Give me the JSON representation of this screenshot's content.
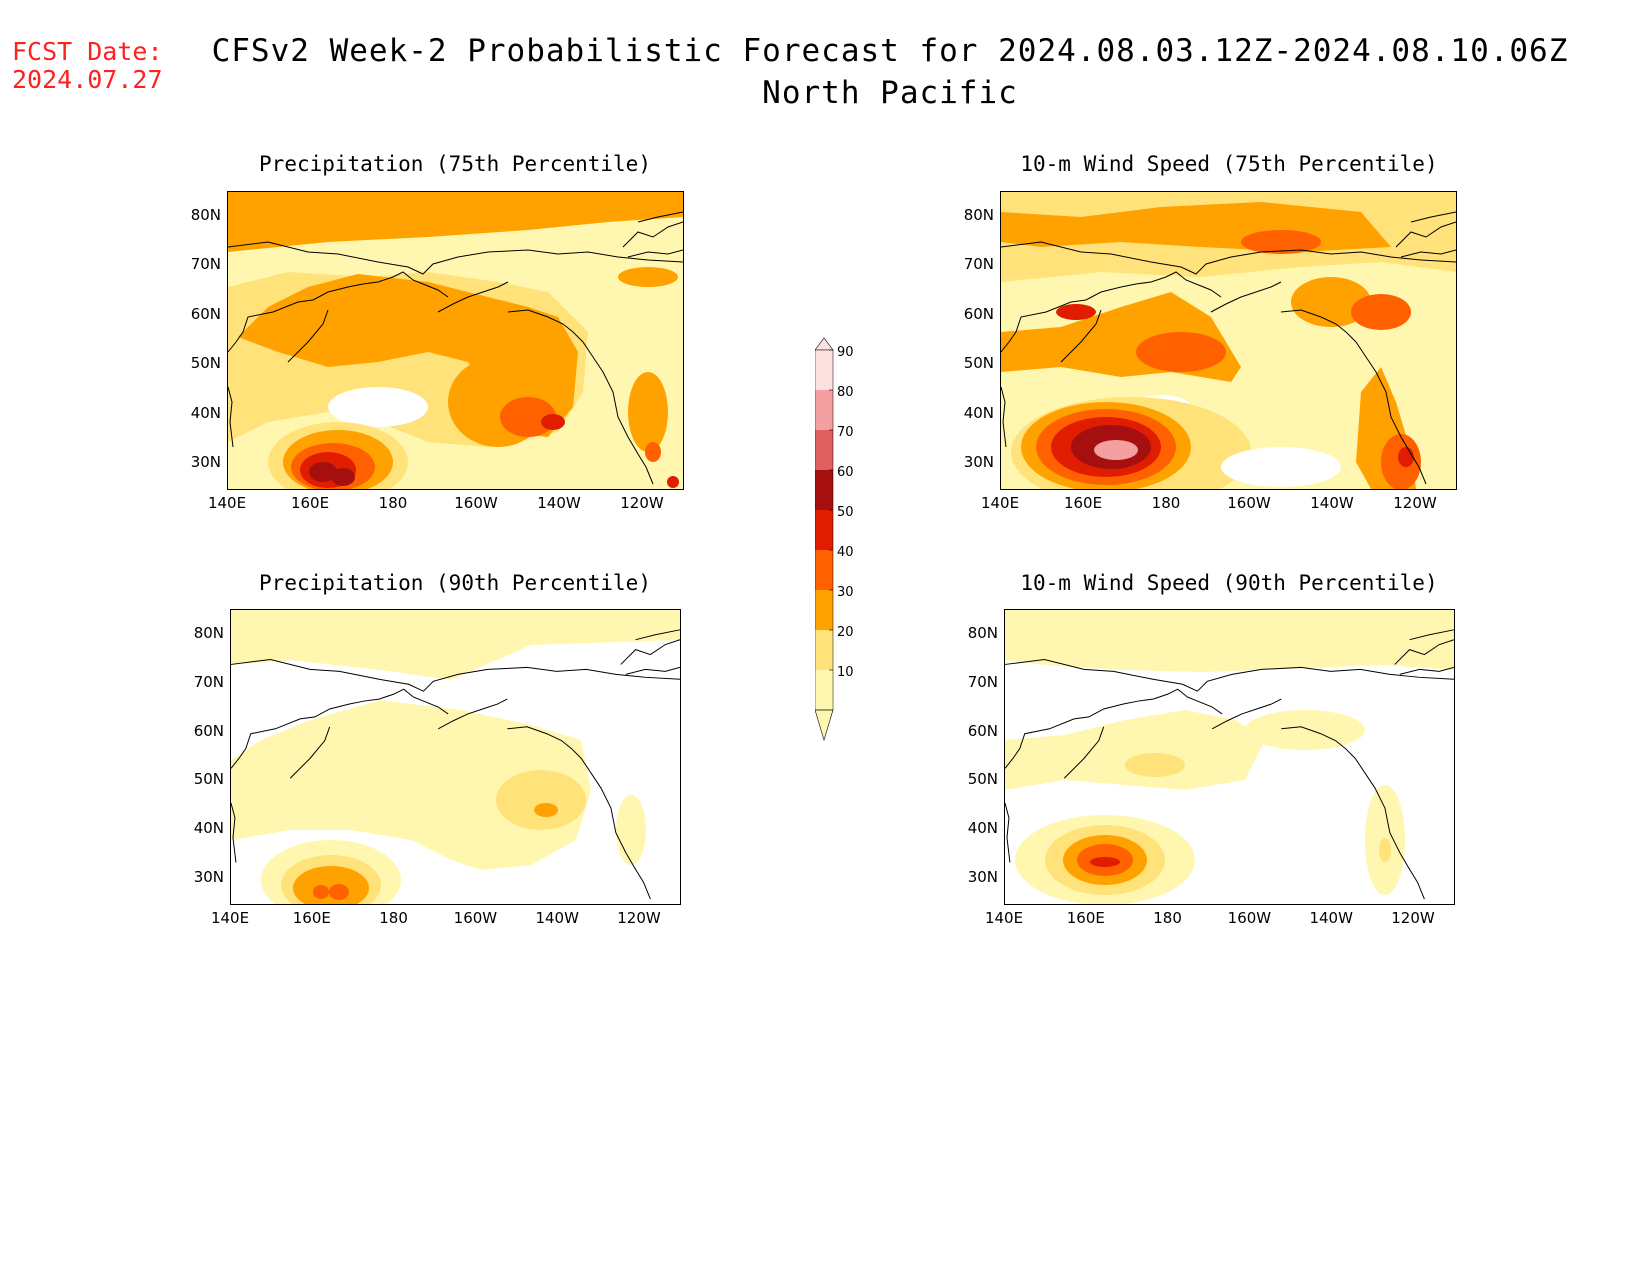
{
  "header": {
    "fcst_label": "FCST Date:",
    "fcst_date": "2024.07.27",
    "title": "CFSv2 Week-2 Probabilistic Forecast for 2024.08.03.12Z-2024.08.10.06Z",
    "subtitle": "North Pacific"
  },
  "axes": {
    "lat_labels": [
      "80N",
      "70N",
      "60N",
      "50N",
      "40N",
      "30N"
    ],
    "lon_labels": [
      "140E",
      "160E",
      "180",
      "160W",
      "140W",
      "120W"
    ]
  },
  "panels": [
    {
      "id": "precip-75",
      "title": "Precipitation (75th Percentile)"
    },
    {
      "id": "wind-75",
      "title": "10-m Wind Speed (75th Percentile)"
    },
    {
      "id": "precip-90",
      "title": "Precipitation (90th Percentile)"
    },
    {
      "id": "wind-90",
      "title": "10-m Wind Speed (90th Percentile)"
    }
  ],
  "colorbar": {
    "labels": [
      "90",
      "80",
      "70",
      "60",
      "50",
      "40",
      "30",
      "20",
      "10"
    ],
    "colors": [
      "#fde0e0",
      "#f4a0a0",
      "#e06060",
      "#a50f0f",
      "#e01d00",
      "#ff6100",
      "#ffa200",
      "#ffe27a",
      "#fff7b0"
    ]
  },
  "palette": {
    "c10": "#fff7b0",
    "c20": "#ffe27a",
    "c30": "#ffa200",
    "c40": "#ff6100",
    "c50": "#e01d00",
    "c60": "#a50f0f",
    "c80": "#f4a0a0",
    "c90": "#fde0e0"
  }
}
